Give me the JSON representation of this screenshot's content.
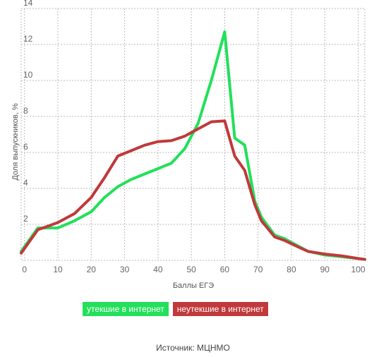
{
  "chart_data": {
    "type": "line",
    "title": "",
    "xlabel": "Баллы ЕГЭ",
    "ylabel": "Доля выпускников, %",
    "xlim": [
      -1,
      102
    ],
    "ylim": [
      0,
      14
    ],
    "xticks": [
      0,
      10,
      20,
      30,
      40,
      50,
      60,
      70,
      80,
      90,
      100
    ],
    "yticks": [
      2,
      4,
      6,
      8,
      10,
      12,
      14
    ],
    "grid": true,
    "legend_position": "bottom",
    "series": [
      {
        "name": "утекшие в интернет",
        "color": "#22e05a",
        "x": [
          -1,
          4,
          7,
          10,
          15,
          20,
          24,
          28,
          32,
          36,
          40,
          44,
          48,
          52,
          56,
          60,
          63,
          66,
          69,
          71,
          75,
          78,
          82,
          85,
          90,
          95,
          100,
          102
        ],
        "y": [
          0.5,
          1.8,
          1.8,
          1.8,
          2.2,
          2.7,
          3.5,
          4.1,
          4.5,
          4.8,
          5.1,
          5.4,
          6.2,
          7.6,
          10.0,
          12.7,
          6.8,
          6.4,
          3.3,
          2.4,
          1.4,
          1.2,
          0.8,
          0.5,
          0.3,
          0.2,
          0.1,
          0.05
        ]
      },
      {
        "name": "неутекшие в интернет",
        "color": "#c0393b",
        "x": [
          -1,
          4,
          7,
          10,
          15,
          20,
          24,
          28,
          32,
          36,
          40,
          44,
          48,
          52,
          56,
          60,
          63,
          66,
          69,
          71,
          75,
          78,
          82,
          85,
          90,
          95,
          100,
          102
        ],
        "y": [
          0.4,
          1.7,
          1.9,
          2.1,
          2.6,
          3.5,
          4.6,
          5.8,
          6.1,
          6.4,
          6.6,
          6.65,
          6.9,
          7.3,
          7.7,
          7.75,
          5.8,
          5.0,
          3.1,
          2.2,
          1.3,
          1.1,
          0.75,
          0.5,
          0.35,
          0.25,
          0.1,
          0.05
        ]
      }
    ]
  },
  "legend": {
    "leaked": "утекшие в интернет",
    "not_leaked": "неутекшие в интернет"
  },
  "source": "Источник: МЦНМО",
  "colors": {
    "leaked": "#22e05a",
    "not_leaked": "#c0393b",
    "grid": "#bbbbbb",
    "axis": "#666666"
  }
}
